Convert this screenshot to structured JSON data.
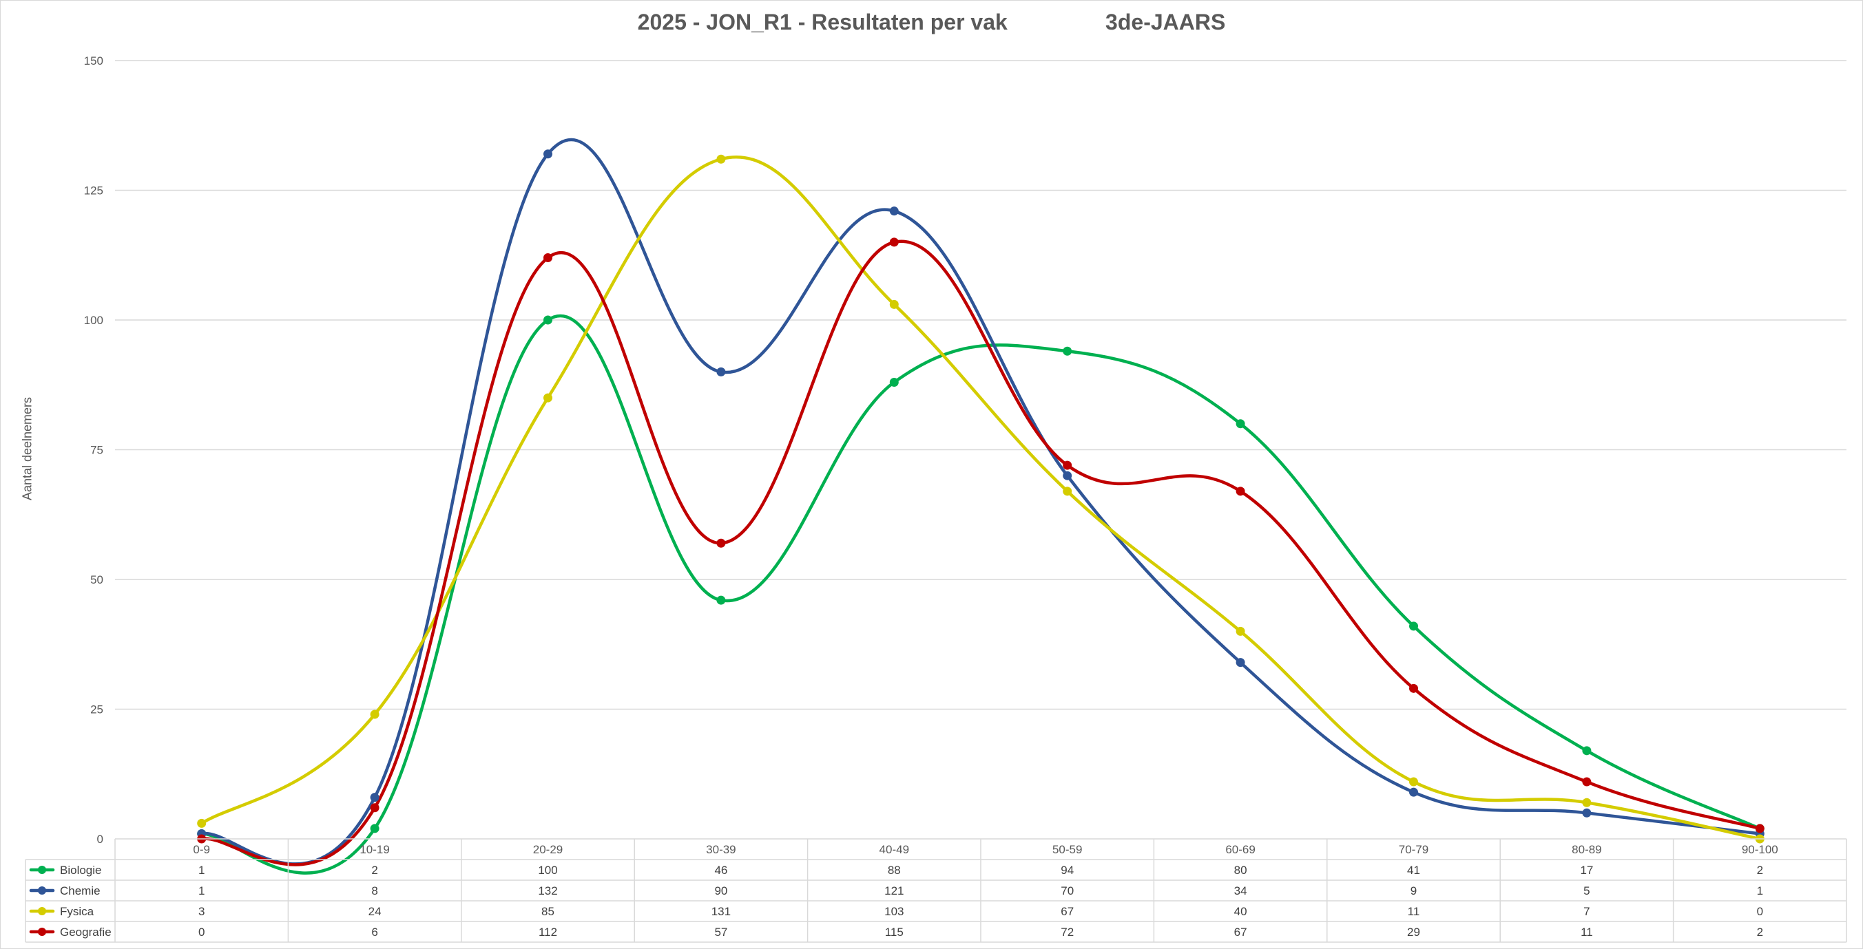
{
  "chart_data": {
    "type": "line",
    "title": "2025 - JON_R1 - Resultaten per vak                3de-JAARS",
    "ylabel": "Aantal deelnemers",
    "xlabel": "",
    "ylim": [
      0,
      150
    ],
    "yticks": [
      0,
      25,
      50,
      75,
      100,
      125,
      150
    ],
    "grid": true,
    "smooth": true,
    "legend": "data-table",
    "categories": [
      "0-9",
      "10-19",
      "20-29",
      "30-39",
      "40-49",
      "50-59",
      "60-69",
      "70-79",
      "80-89",
      "90-100"
    ],
    "series": [
      {
        "name": "Biologie",
        "color": "#00b050",
        "values": [
          1,
          2,
          100,
          46,
          88,
          94,
          80,
          41,
          17,
          2
        ]
      },
      {
        "name": "Chemie",
        "color": "#2f5597",
        "values": [
          1,
          8,
          132,
          90,
          121,
          70,
          34,
          9,
          5,
          1
        ]
      },
      {
        "name": "Fysica",
        "color": "#d4cc00",
        "values": [
          3,
          24,
          85,
          131,
          103,
          67,
          40,
          11,
          7,
          0
        ]
      },
      {
        "name": "Geografie",
        "color": "#c00000",
        "values": [
          0,
          6,
          112,
          57,
          115,
          72,
          67,
          29,
          11,
          2
        ]
      }
    ]
  }
}
